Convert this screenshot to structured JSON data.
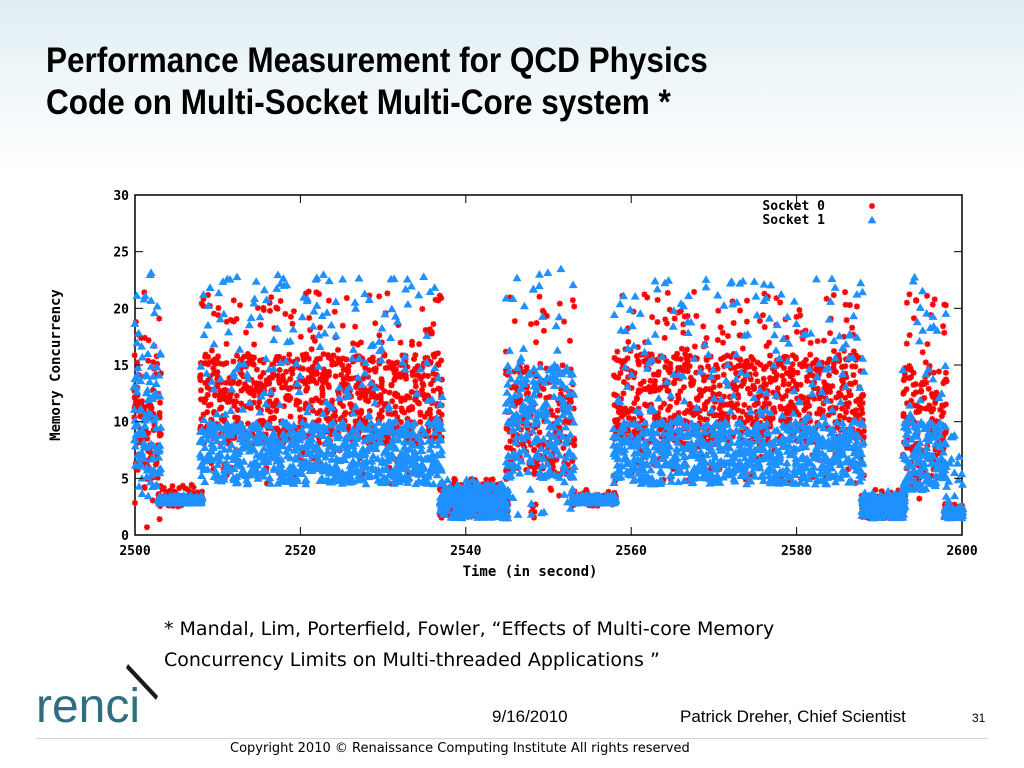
{
  "slide": {
    "title_line1": "Performance Measurement for QCD Physics",
    "title_line2": "Code on Multi-Socket Multi-Core system *",
    "citation_line1": "* Mandal, Lim, Porterfield, Fowler, “Effects of Multi-core Memory",
    "citation_line2": "Concurrency Limits on Multi-threaded Applications ”",
    "footer_date": "9/16/2010",
    "footer_author": "Patrick Dreher, Chief Scientist",
    "page_number": "31",
    "copyright": "Copyright 2010 © Renaissance Computing Institute All rights reserved",
    "logo_text": "renci"
  },
  "chart_data": {
    "type": "scatter",
    "title": "",
    "xlabel": "Time (in second)",
    "ylabel": "Memory Concurrency",
    "xlim": [
      2500,
      2600
    ],
    "ylim": [
      0,
      30
    ],
    "xticks": [
      2500,
      2520,
      2540,
      2560,
      2580,
      2600
    ],
    "yticks": [
      0,
      5,
      10,
      15,
      20,
      25,
      30
    ],
    "legend_position": "top-right",
    "grid": false,
    "series": [
      {
        "name": "Socket 0",
        "marker": "asterisk",
        "color": "#ff0000",
        "segments": [
          {
            "x": [
              2500,
              2503
            ],
            "y": [
              0.5,
              21.5
            ],
            "dense": [
              4,
              15
            ]
          },
          {
            "x": [
              2503,
              2508
            ],
            "y": [
              2.5,
              4.5
            ],
            "dense": [
              2.8,
              3.5
            ]
          },
          {
            "x": [
              2508,
              2537
            ],
            "y": [
              4.5,
              21.5
            ],
            "dense": [
              8,
              16
            ]
          },
          {
            "x": [
              2537,
              2545
            ],
            "y": [
              1.5,
              5
            ],
            "dense": [
              1.5,
              4.5
            ]
          },
          {
            "x": [
              2545,
              2553
            ],
            "y": [
              1.5,
              21.5
            ],
            "dense": [
              5,
              15
            ]
          },
          {
            "x": [
              2553,
              2558
            ],
            "y": [
              2.5,
              4
            ],
            "dense": [
              2.8,
              3.5
            ]
          },
          {
            "x": [
              2558,
              2588
            ],
            "y": [
              4.5,
              21.5
            ],
            "dense": [
              8,
              16
            ]
          },
          {
            "x": [
              2588,
              2593
            ],
            "y": [
              1.5,
              4
            ],
            "dense": [
              1.5,
              3.5
            ]
          },
          {
            "x": [
              2593,
              2598
            ],
            "y": [
              3,
              22
            ],
            "dense": [
              5,
              15
            ]
          },
          {
            "x": [
              2598,
              2600
            ],
            "y": [
              1.5,
              3
            ],
            "dense": [
              1.5,
              2.5
            ]
          }
        ]
      },
      {
        "name": "Socket 1",
        "marker": "triangle",
        "color": "#1e90ff",
        "segments": [
          {
            "x": [
              2500,
              2503
            ],
            "y": [
              1.5,
              23.5
            ],
            "dense": [
              4,
              15
            ]
          },
          {
            "x": [
              2503,
              2508
            ],
            "y": [
              2.8,
              3.5
            ],
            "dense": [
              2.8,
              3.5
            ]
          },
          {
            "x": [
              2508,
              2537
            ],
            "y": [
              4.5,
              23
            ],
            "dense": [
              4.5,
              10
            ]
          },
          {
            "x": [
              2537,
              2545
            ],
            "y": [
              1.5,
              5
            ],
            "dense": [
              1.5,
              4.5
            ]
          },
          {
            "x": [
              2545,
              2553
            ],
            "y": [
              1.5,
              23.5
            ],
            "dense": [
              5,
              15
            ]
          },
          {
            "x": [
              2553,
              2558
            ],
            "y": [
              2.8,
              3.5
            ],
            "dense": [
              2.8,
              3.5
            ]
          },
          {
            "x": [
              2558,
              2588
            ],
            "y": [
              4.5,
              23
            ],
            "dense": [
              4.5,
              10
            ]
          },
          {
            "x": [
              2588,
              2593
            ],
            "y": [
              1.5,
              4
            ],
            "dense": [
              1.5,
              3.5
            ]
          },
          {
            "x": [
              2593,
              2598
            ],
            "y": [
              3,
              23
            ],
            "dense": [
              4,
              10
            ]
          },
          {
            "x": [
              2598,
              2600
            ],
            "y": [
              1.5,
              9
            ],
            "dense": [
              1.5,
              2.5
            ]
          }
        ]
      }
    ]
  }
}
